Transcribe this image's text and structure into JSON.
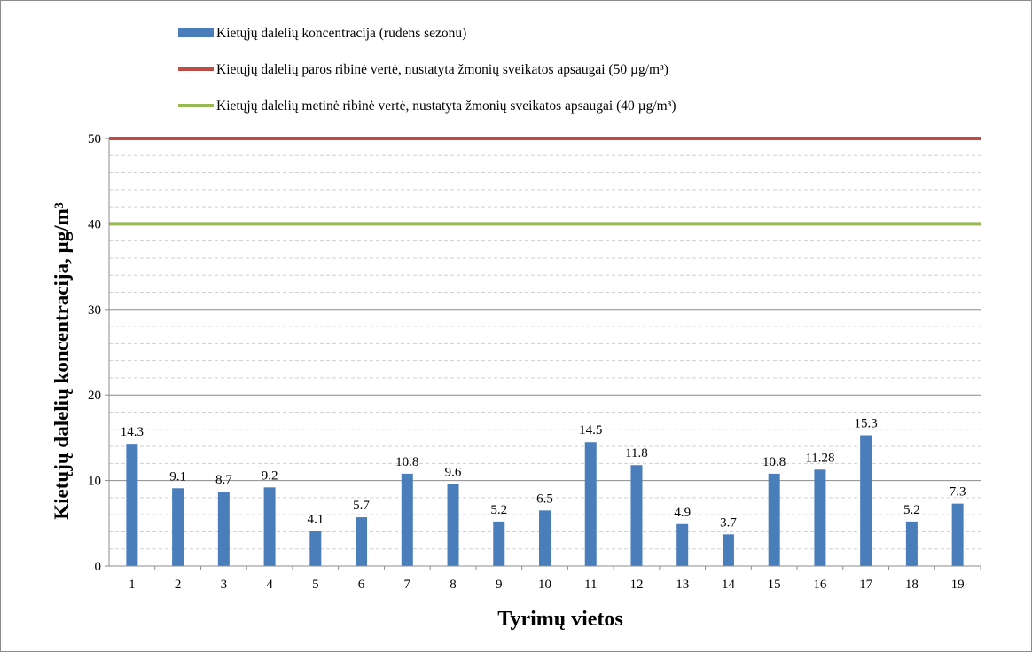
{
  "chart_data": {
    "type": "bar",
    "categories": [
      "1",
      "2",
      "3",
      "4",
      "5",
      "6",
      "7",
      "8",
      "9",
      "10",
      "11",
      "12",
      "13",
      "14",
      "15",
      "16",
      "17",
      "18",
      "19"
    ],
    "series": [
      {
        "name": "Kietųjų dalelių koncentracija (rudens sezonu)",
        "values": [
          14.3,
          9.1,
          8.7,
          9.2,
          4.1,
          5.7,
          10.8,
          9.6,
          5.2,
          6.5,
          14.5,
          11.8,
          4.9,
          3.7,
          10.8,
          11.28,
          15.3,
          5.2,
          7.3
        ],
        "labels": [
          "14.3",
          "9.1",
          "8.7",
          "9.2",
          "4.1",
          "5.7",
          "10.8",
          "9.6",
          "5.2",
          "6.5",
          "14.5",
          "11.8",
          "4.9",
          "3.7",
          "10.8",
          "11.28",
          "15.3",
          "5.2",
          "7.3"
        ],
        "color": "#4a7ebb"
      }
    ],
    "reference_lines": [
      {
        "name": "Kietųjų dalelių paros ribinė vertė, nustatyta žmonių sveikatos apsaugai (50 µg/m³)",
        "value": 50,
        "color": "#be4b48"
      },
      {
        "name": "Kietųjų dalelių metinė ribinė vertė, nustatyta žmonių sveikatos apsaugai (40 µg/m³)",
        "value": 40,
        "color": "#98b954"
      }
    ],
    "xlabel": "Tyrimų vietos",
    "ylabel": "Kietųjų dalelių koncentracija, µg/m³",
    "ylim": [
      0,
      50
    ],
    "yticks": [
      "0",
      "10",
      "20",
      "30",
      "40",
      "50"
    ],
    "grid": true,
    "legend_position": "top-left"
  }
}
